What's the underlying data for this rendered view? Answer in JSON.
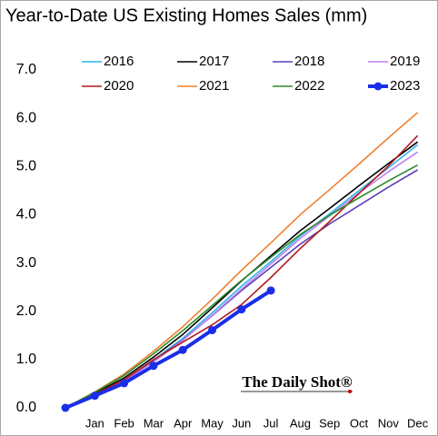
{
  "chart_data": {
    "type": "line",
    "title": "Year-to-Date US Existing Homes Sales (mm)",
    "watermark": "The Daily Shot®",
    "categories": [
      null,
      "Jan",
      "Feb",
      "Mar",
      "Apr",
      "May",
      "Jun",
      "Jul",
      "Aug",
      "Sep",
      "Oct",
      "Nov",
      "Dec"
    ],
    "ylim": [
      0,
      7
    ],
    "yticks": [
      {
        "value": 0,
        "label": "0.0"
      },
      {
        "value": 1,
        "label": "1.0"
      },
      {
        "value": 2,
        "label": "2.0"
      },
      {
        "value": 3,
        "label": "3.0"
      },
      {
        "value": 4,
        "label": "4.0"
      },
      {
        "value": 5,
        "label": "5.0"
      },
      {
        "value": 6,
        "label": "6.0"
      },
      {
        "value": 7,
        "label": "7.0"
      }
    ],
    "grid": false,
    "legend": "top",
    "series": [
      {
        "name": "2016",
        "color": "#2eb6e6",
        "values": [
          0,
          0.27,
          0.57,
          0.99,
          1.44,
          1.97,
          2.52,
          3.03,
          3.56,
          4.02,
          4.5,
          4.97,
          5.45
        ]
      },
      {
        "name": "2017",
        "color": "#000000",
        "values": [
          0,
          0.3,
          0.62,
          1.05,
          1.52,
          2.07,
          2.63,
          3.15,
          3.67,
          4.13,
          4.6,
          5.06,
          5.51
        ]
      },
      {
        "name": "2018",
        "color": "#5b3fb8",
        "values": [
          0,
          0.28,
          0.58,
          0.98,
          1.41,
          1.91,
          2.43,
          2.91,
          3.39,
          3.81,
          4.19,
          4.57,
          4.93
        ]
      },
      {
        "name": "2019",
        "color": "#c27ef0",
        "values": [
          0,
          0.27,
          0.55,
          0.95,
          1.4,
          1.92,
          2.46,
          2.98,
          3.51,
          3.98,
          4.45,
          4.89,
          5.3
        ]
      },
      {
        "name": "2020",
        "color": "#b01c1c",
        "values": [
          0,
          0.28,
          0.58,
          1.0,
          1.36,
          1.72,
          2.14,
          2.7,
          3.3,
          3.86,
          4.44,
          5.01,
          5.64
        ]
      },
      {
        "name": "2021",
        "color": "#f08030",
        "values": [
          0,
          0.33,
          0.7,
          1.17,
          1.68,
          2.25,
          2.85,
          3.42,
          4.0,
          4.52,
          5.05,
          5.59,
          6.12
        ]
      },
      {
        "name": "2022",
        "color": "#2a8a2a",
        "values": [
          0,
          0.32,
          0.67,
          1.12,
          1.6,
          2.12,
          2.64,
          3.12,
          3.59,
          3.99,
          4.35,
          4.7,
          5.03
        ]
      },
      {
        "name": "2023",
        "color": "#1a2ee8",
        "linewidth": 4,
        "marker": true,
        "values": [
          0,
          0.25,
          0.51,
          0.87,
          1.2,
          1.61,
          2.04,
          2.43,
          null,
          null,
          null,
          null,
          null
        ]
      }
    ]
  }
}
